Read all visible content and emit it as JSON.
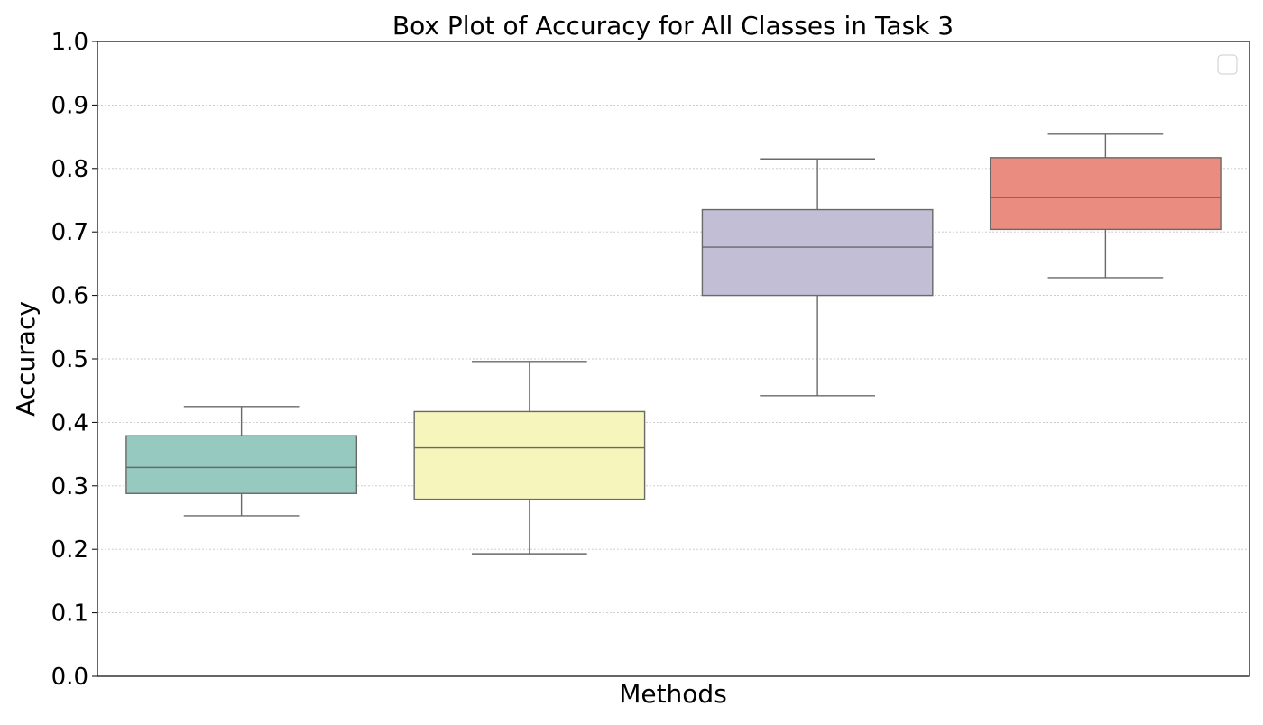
{
  "chart_data": {
    "type": "box",
    "title": "Box Plot of Accuracy for All Classes in Task 3",
    "xlabel": "Methods",
    "ylabel": "Accuracy",
    "ylim": [
      0.0,
      1.0
    ],
    "yticks": [
      "0.0",
      "0.1",
      "0.2",
      "0.3",
      "0.4",
      "0.5",
      "0.6",
      "0.7",
      "0.8",
      "0.9",
      "1.0"
    ],
    "grid": "horizontal dotted",
    "legend": {
      "placement": "top-right",
      "entries": []
    },
    "boxes": [
      {
        "color": "#96cac1",
        "whisker_low": 0.253,
        "q1": 0.288,
        "median": 0.329,
        "q3": 0.379,
        "whisker_high": 0.425
      },
      {
        "color": "#f6f6bc",
        "whisker_low": 0.193,
        "q1": 0.279,
        "median": 0.36,
        "q3": 0.417,
        "whisker_high": 0.496
      },
      {
        "color": "#c1bed6",
        "whisker_low": 0.442,
        "q1": 0.6,
        "median": 0.676,
        "q3": 0.735,
        "whisker_high": 0.815
      },
      {
        "color": "#ea8c80",
        "whisker_low": 0.628,
        "q1": 0.704,
        "median": 0.754,
        "q3": 0.817,
        "whisker_high": 0.854
      }
    ]
  }
}
